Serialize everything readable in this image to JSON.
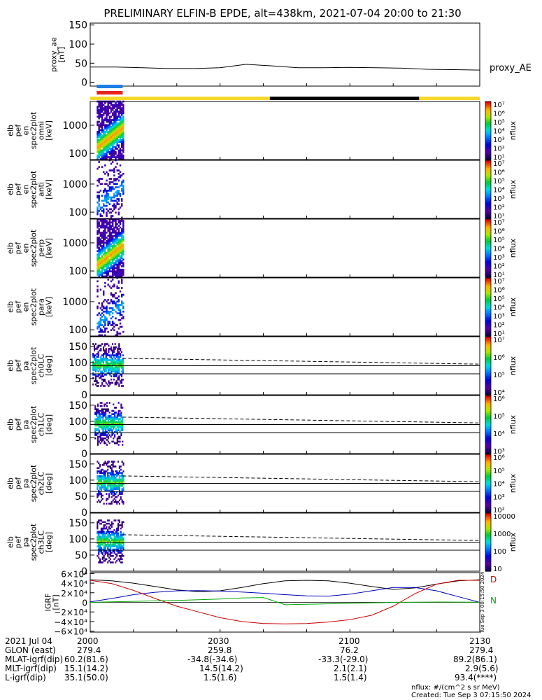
{
  "title": "PRELIMINARY ELFIN-B EPDE, alt=438km, 2021-07-04 20:00 to 21:30",
  "colors": {
    "sunlit_bar": "#f7d82a",
    "shadow_bar": "#000000",
    "ae_line": "#000000",
    "flag_blue": "#1d7fe6",
    "flag_red": "#e8231c",
    "igrf_x": "#000000",
    "igrf_y": "#0000bb",
    "igrf_z": "#cc0000",
    "igrf_extra": "#00aa00"
  },
  "chart_data": [
    {
      "id": "proxy_ae",
      "type": "line",
      "ylabel": "proxy_ae\n[nT]",
      "legend": "proxy_AE",
      "ylim": [
        -10,
        155
      ],
      "yticks": [
        "150",
        "100",
        "50",
        "0"
      ],
      "yticks_values": [
        150,
        100,
        50,
        0
      ],
      "x_minutes": [
        0,
        6,
        12,
        18,
        24,
        30,
        36,
        42,
        48,
        54,
        60,
        66,
        72,
        78,
        84,
        90
      ],
      "values": [
        40,
        40,
        38,
        36,
        36,
        38,
        47,
        43,
        38,
        38,
        39,
        38,
        37,
        34,
        33,
        32
      ]
    },
    {
      "id": "sunlight_bar",
      "type": "bar",
      "segments": [
        {
          "from_min": 0,
          "to_min": 41.5,
          "state": "sunlit"
        },
        {
          "from_min": 41.5,
          "to_min": 76,
          "state": "shadow"
        },
        {
          "from_min": 76,
          "to_min": 90,
          "state": "sunlit"
        }
      ]
    },
    {
      "id": "science_flags",
      "type": "bar",
      "segments": [
        {
          "from_min": 1.5,
          "to_min": 7.5,
          "color": "blue"
        },
        {
          "from_min": 1.5,
          "to_min": 7.5,
          "color": "red"
        }
      ]
    },
    {
      "id": "spec_omni",
      "type": "heatmap",
      "ylabel": "elb\npef\nen\nspec2plot\nomni\n[keV]",
      "yticks": [
        "1000",
        "100"
      ],
      "ylog": true,
      "yrange_keV": [
        60,
        7000
      ],
      "active_x_minutes": [
        1.5,
        7.5
      ],
      "colorbar": {
        "label": "nflux",
        "ticks": [
          "10⁷",
          "10⁶",
          "10⁵",
          "10⁴",
          "10³",
          "10²",
          "10¹"
        ]
      }
    },
    {
      "id": "spec_anti",
      "type": "heatmap",
      "ylabel": "elb\npef\nen\nspec2plot\nanti\n[keV]",
      "yticks": [
        "1000",
        "100"
      ],
      "ylog": true,
      "yrange_keV": [
        60,
        7000
      ],
      "active_x_minutes": [
        1.5,
        7.5
      ],
      "colorbar": {
        "label": "nflux",
        "ticks": [
          "10⁷",
          "10⁶",
          "10⁵",
          "10⁴",
          "10³",
          "10²",
          "10¹"
        ]
      }
    },
    {
      "id": "spec_perp",
      "type": "heatmap",
      "ylabel": "elb\npef\nen\nspec2plot\nperp\n[keV]",
      "yticks": [
        "1000",
        "100"
      ],
      "ylog": true,
      "yrange_keV": [
        60,
        7000
      ],
      "active_x_minutes": [
        1.5,
        7.5
      ],
      "colorbar": {
        "label": "nflux",
        "ticks": [
          "10⁷",
          "10⁶",
          "10⁵",
          "10⁴",
          "10³",
          "10²",
          "10¹"
        ]
      }
    },
    {
      "id": "spec_para",
      "type": "heatmap",
      "ylabel": "elb\npef\nen\nspec2plot\npara\n[keV]",
      "yticks": [
        "1000",
        "100"
      ],
      "ylog": true,
      "yrange_keV": [
        60,
        7000
      ],
      "active_x_minutes": [
        1.5,
        7.5
      ],
      "colorbar": {
        "label": "nflux",
        "ticks": [
          "10⁷",
          "10⁶",
          "10⁵",
          "10⁴",
          "10³",
          "10²",
          "10¹"
        ]
      }
    },
    {
      "id": "pa_ch0",
      "type": "heatmap",
      "ylabel": "elb\npef\npa\nspec2plot\nch0LC\n[deg]",
      "ylim": [
        0,
        180
      ],
      "yticks": [
        "150",
        "100",
        "50",
        "0"
      ],
      "yticks_values": [
        150,
        100,
        50,
        0
      ],
      "lines_deg": [
        90,
        65
      ],
      "dashed_x_minutes": [
        7.5,
        90
      ],
      "dashed_deg": [
        113,
        95
      ],
      "active_x_minutes": [
        0.5,
        7.5
      ],
      "colorbar": {
        "label": "nflux",
        "ticks": [
          "10⁷",
          "10⁶",
          "10⁵",
          "10⁴"
        ]
      }
    },
    {
      "id": "pa_ch1",
      "type": "heatmap",
      "ylabel": "elb\npef\npa\nspec2plot\nch1LC\n[deg]",
      "ylim": [
        0,
        180
      ],
      "yticks": [
        "150",
        "100",
        "50",
        "0"
      ],
      "yticks_values": [
        150,
        100,
        50,
        0
      ],
      "lines_deg": [
        90,
        65
      ],
      "dashed_x_minutes": [
        7.5,
        90
      ],
      "dashed_deg": [
        113,
        95
      ],
      "active_x_minutes": [
        1,
        7.5
      ],
      "colorbar": {
        "label": "nflux",
        "ticks": [
          "10⁶",
          "10⁵",
          "10⁴",
          "10³"
        ]
      }
    },
    {
      "id": "pa_ch2",
      "type": "heatmap",
      "ylabel": "elb\npef\npa\nspec2plot\nch2LC\n[deg]",
      "ylim": [
        0,
        180
      ],
      "yticks": [
        "150",
        "100",
        "50",
        "0"
      ],
      "yticks_values": [
        150,
        100,
        50,
        0
      ],
      "lines_deg": [
        90,
        65
      ],
      "dashed_x_minutes": [
        7.5,
        90
      ],
      "dashed_deg": [
        113,
        95
      ],
      "active_x_minutes": [
        1.5,
        7.5
      ],
      "colorbar": {
        "label": "nflux",
        "ticks": [
          "10⁶",
          "10⁵",
          "10⁴",
          "10³",
          "10²"
        ]
      }
    },
    {
      "id": "pa_ch3",
      "type": "heatmap",
      "ylabel": "elb\npef\npa\nspec2plot\nch3LC\n[deg]",
      "ylim": [
        0,
        180
      ],
      "yticks": [
        "150",
        "100",
        "50",
        "0"
      ],
      "yticks_values": [
        150,
        100,
        50,
        0
      ],
      "lines_deg": [
        90,
        65
      ],
      "dashed_x_minutes": [
        7.5,
        90
      ],
      "dashed_deg": [
        113,
        95
      ],
      "active_x_minutes": [
        1.5,
        7.5
      ],
      "colorbar": {
        "label": "nflux",
        "ticks": [
          "10000",
          "1000",
          "100",
          "10"
        ]
      }
    },
    {
      "id": "igrf",
      "type": "line",
      "ylabel": "IGRF\n[nT]",
      "ylim": [
        -62000,
        62000
      ],
      "yticks": [
        "6×10⁴",
        "4×10⁴",
        "2×10⁴",
        "0",
        "−2×10⁴",
        "−4×10⁴",
        "−6×10⁴"
      ],
      "yticks_values": [
        60000,
        40000,
        20000,
        0,
        -20000,
        -40000,
        -60000
      ],
      "legend": [
        "D",
        "N"
      ],
      "x_minutes": [
        0,
        5,
        10,
        15,
        20,
        25,
        30,
        35,
        40,
        45,
        50,
        55,
        60,
        65,
        70,
        75,
        80,
        85,
        90
      ],
      "series": [
        {
          "values": [
            47000,
            45000,
            40000,
            33000,
            26000,
            22000,
            24000,
            31000,
            39000,
            45000,
            46000,
            45000,
            40000,
            33000,
            27000,
            30000,
            38000,
            45000,
            47000
          ]
        },
        {
          "values": [
            1000,
            8000,
            16000,
            21000,
            24000,
            24500,
            23500,
            21500,
            19000,
            16000,
            13500,
            13000,
            17000,
            24000,
            31000,
            31000,
            24000,
            12000,
            0
          ]
        },
        {
          "values": [
            46000,
            39000,
            25000,
            8000,
            -8000,
            -20000,
            -32000,
            -40000,
            -44000,
            -45000,
            -44000,
            -41000,
            -36000,
            -27000,
            -8000,
            18000,
            38000,
            46000,
            46000
          ]
        },
        {
          "values": [
            0,
            1000,
            2000,
            3000,
            4000,
            5500,
            7000,
            9000,
            10000,
            -5000,
            -4000,
            -3000,
            -2000,
            -1000,
            0,
            500,
            800,
            600,
            300
          ]
        }
      ]
    }
  ],
  "footer": {
    "date_label": "2021 Jul 04",
    "x_ticks": [
      "2000",
      "2030",
      "2100",
      "2130"
    ],
    "rows": [
      {
        "label": "GLON (east)",
        "values": [
          "279.4",
          "259.8",
          "76.2",
          "279.4"
        ]
      },
      {
        "label": "MLAT-igrf(dip)",
        "values": [
          "60.2(81.6)",
          "-34.8(-34.6)",
          "-33.3(-29.0)",
          "89.2(86.1)"
        ]
      },
      {
        "label": "MLT-igrf(dip)",
        "values": [
          "15.1(14.2)",
          "14.5(14.2)",
          "2.1(2.1)",
          "2.9(5.6)"
        ]
      },
      {
        "label": "L-igrf(dip)",
        "values": [
          "35.1(50.0)",
          "1.5(1.6)",
          "1.5(1.4)",
          "93.4(****)"
        ]
      }
    ],
    "nflux_units": "nflux: #/(cm^2 s sr MeV)",
    "created": "Created: Tue Sep  3 07:15:50 2024",
    "rotated_stamp": "Tue Sep  3 00:15:50 2024"
  }
}
